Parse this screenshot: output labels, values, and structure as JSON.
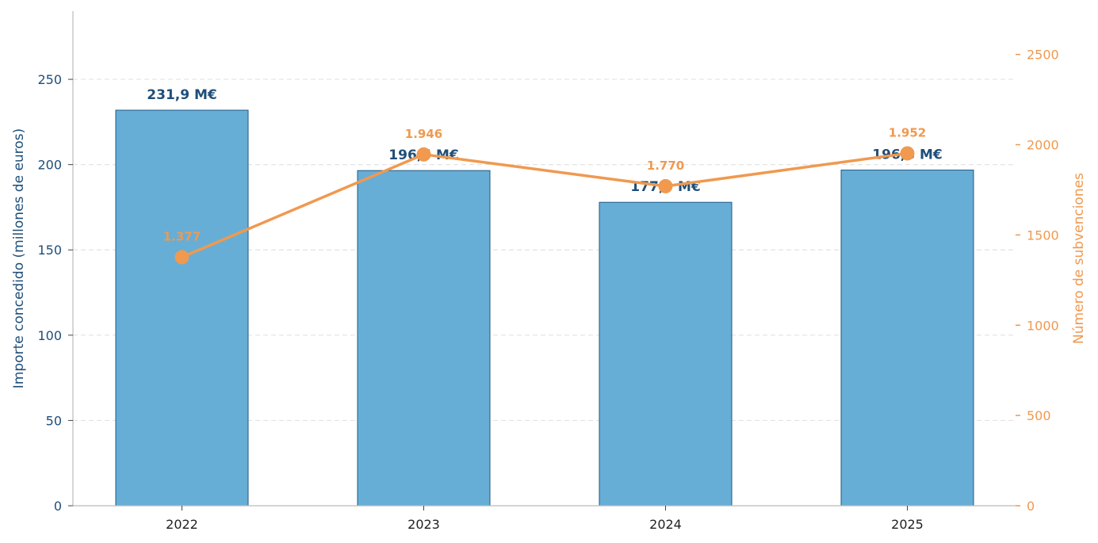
{
  "chart_data": {
    "type": "bar",
    "categories": [
      "2022",
      "2023",
      "2024",
      "2025"
    ],
    "series": [
      {
        "name": "",
        "type": "bar",
        "axis": "left",
        "values": [
          231.9,
          196.5,
          177.9,
          196.8
        ],
        "labels": [
          "231,9 M€",
          "196,5 M€",
          "177,9 M€",
          "196,8 M€"
        ],
        "color": "#67aed6",
        "edge_color": "#1f5a85"
      },
      {
        "name": "",
        "type": "line",
        "axis": "right",
        "values": [
          1377,
          1946,
          1770,
          1952
        ],
        "labels": [
          "1.377",
          "1.946",
          "1.770",
          "1.952"
        ],
        "color": "#f0994f"
      }
    ],
    "title": "",
    "xlabel": "",
    "ylabel": "Importe concedido (millones de euros)",
    "y2label": "Número de subvenciones",
    "ylim": [
      0,
      290
    ],
    "y2lim": [
      0,
      2740
    ],
    "yticks": [
      0,
      50,
      100,
      150,
      200,
      250
    ],
    "y2ticks": [
      0,
      500,
      1000,
      1500,
      2000,
      2500
    ],
    "grid": true,
    "legend": "none",
    "colors": {
      "left_axis": "#1f4e79",
      "right_axis": "#f0994f",
      "grid": "#e3e3e3",
      "spine": "#bbbbbb"
    }
  }
}
